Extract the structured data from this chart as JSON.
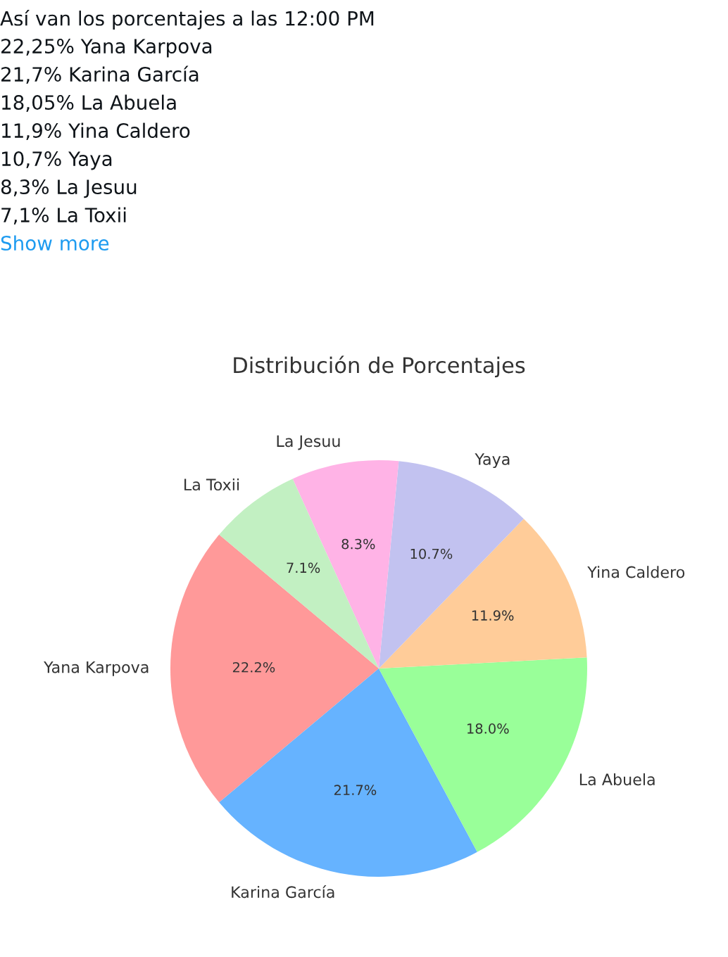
{
  "chart_data": {
    "type": "pie",
    "title": "Distribución de Porcentajes",
    "categories": [
      "Yana Karpova",
      "Karina García",
      "La Abuela",
      "Yina Caldero",
      "Yaya",
      "La Jesuu",
      "La Toxii"
    ],
    "values": [
      22.2,
      21.7,
      18.0,
      11.9,
      10.7,
      8.3,
      7.1
    ],
    "colors": [
      "#ff9999",
      "#66b3ff",
      "#99ff99",
      "#ffcc99",
      "#c2c2f0",
      "#ffb3e6",
      "#c2f0c2"
    ],
    "value_labels": [
      "22.2%",
      "21.7%",
      "18.0%",
      "11.9%",
      "10.7%",
      "8.3%",
      "7.1%"
    ],
    "annotations": [
      "Así van los porcentajes a las 12:00 PM",
      "22,25% Yana Karpova",
      "21,7% Karina García",
      "18,05% La Abuela",
      "11,9% Yina Caldero",
      "10,7% Yaya",
      "8,3% La Jesuu",
      "7,1% La Toxii",
      "Show more"
    ],
    "legend": false
  }
}
